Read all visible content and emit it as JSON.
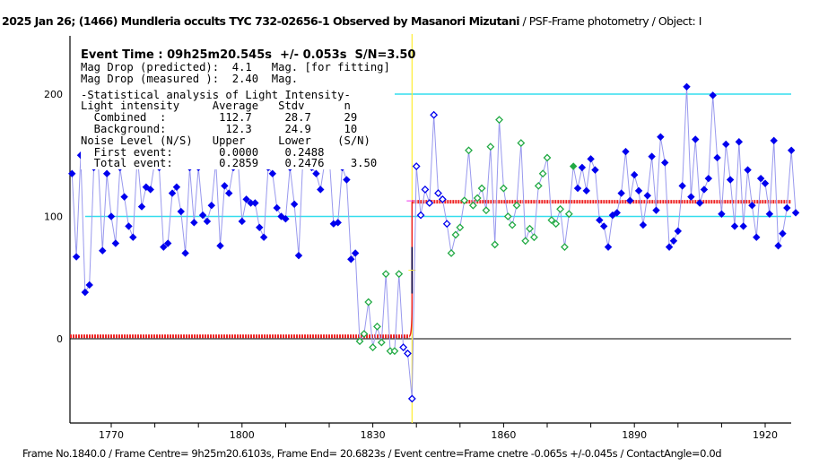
{
  "title": {
    "bold": "2025 Jan 26; (1466) Mundleria occults TYC 732-02656-1 Observed by Masanori Mizutani",
    "normal": " / PSF-Frame photometry /  Object: I"
  },
  "info": {
    "event_time": "Event Time : 09h25m20.545s  +/- 0.053s  S/N=3.50",
    "mag_pred": "Mag Drop (predicted):  4.1   Mag. [for fitting]",
    "mag_meas": "Mag Drop (measured ):  2.40  Mag.",
    "stat_header": "-Statistical analysis of Light Intensity-",
    "row_header": "Light intensity     Average   Stdv      n",
    "combined": "  Combined  :        112.7     28.7     29",
    "background": "  Background:         12.3     24.9     10",
    "noise_header": "Noise Level (N/S)   Upper     Lower    (S/N)",
    "first_event": "  First event:       0.0000    0.2488",
    "total_event": "  Total event:       0.2859    0.2476    3.50"
  },
  "footer": "Frame No.1840.0 / Frame Centre= 9h25m20.6103s,  Frame End= 20.6823s / Event centre=Frame cnetre -0.065s +/-0.045s / ContactAngle=0.0d",
  "colors": {
    "blue": "#0000ee",
    "green": "#22aa44",
    "line": "#9999ee",
    "cyan": "#33ddee",
    "fit": "#ee2222",
    "event": "#ffee33"
  },
  "chart_data": {
    "type": "line",
    "xlabel": "",
    "ylabel": "",
    "xlim": [
      1760.5,
      1927.5
    ],
    "ylim": [
      -69,
      247
    ],
    "x_ticks": [
      1770,
      1800,
      1830,
      1860,
      1890,
      1920
    ],
    "y_ticks": [
      0,
      100,
      200
    ],
    "reference_lines": [
      100,
      200
    ],
    "event_frame": 1839,
    "fit_levels": {
      "bottom": 2,
      "top": 112
    },
    "pre_event": {
      "start_frame": 1761,
      "values": [
        135,
        67,
        150,
        38,
        44,
        140,
        145,
        72,
        135,
        100,
        78,
        140,
        116,
        92,
        83,
        150,
        108,
        124,
        122,
        145,
        140,
        75,
        78,
        119,
        124,
        104,
        70,
        140,
        95,
        140,
        101,
        96,
        109,
        145,
        76,
        125,
        119,
        140,
        150,
        96,
        114,
        111,
        111,
        91,
        83,
        140,
        135,
        107,
        100,
        98,
        140,
        110,
        68,
        150,
        145,
        140,
        135,
        122,
        145,
        150,
        94,
        95,
        140,
        130,
        65,
        70,
        -2,
        4,
        30,
        -7,
        10,
        -3,
        53,
        -10,
        -10,
        53,
        -7,
        -12,
        -49
      ],
      "green_open_index_range": [
        66,
        75
      ],
      "blue_open_index_range": [
        76,
        78
      ]
    },
    "post_event": {
      "start_frame": 1840,
      "values": [
        141,
        101,
        122,
        111,
        183,
        119,
        114,
        94,
        70,
        85,
        91,
        113,
        154,
        109,
        115,
        123,
        105,
        157,
        77,
        179,
        123,
        100,
        93,
        109,
        160,
        80,
        90,
        83,
        125,
        135,
        148,
        97,
        94,
        106,
        75,
        102,
        141,
        123,
        140,
        121,
        147,
        138,
        97,
        92,
        75,
        101,
        103,
        119,
        153,
        113,
        134,
        121,
        93,
        117,
        149,
        105,
        165,
        144,
        75,
        80,
        88,
        125,
        206,
        116,
        163,
        111,
        122,
        131,
        199,
        148,
        102,
        159,
        130,
        92,
        161,
        92,
        138,
        109,
        83,
        131,
        127,
        102,
        162,
        76,
        86,
        107,
        154,
        103
      ],
      "blue_open_index_range": [
        0,
        7
      ],
      "green_open_index_range": [
        8,
        35
      ],
      "green_filled_index": 36
    },
    "event_error_bar": [
      75,
      37
    ]
  }
}
